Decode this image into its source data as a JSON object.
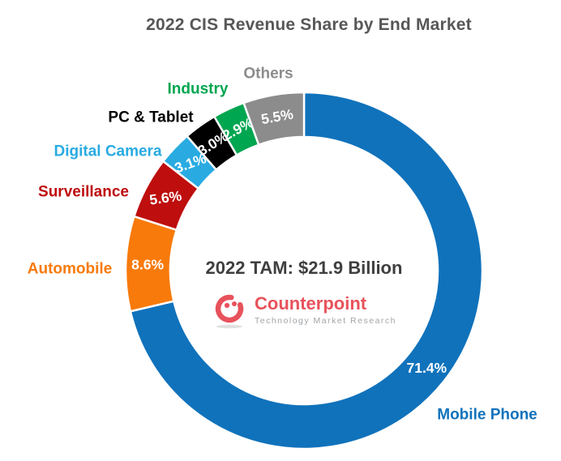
{
  "title": "2022 CIS Revenue Share by End Market",
  "center": {
    "tam_text": "2022 TAM: $21.9 Billion",
    "logo": {
      "name": "Counterpoint",
      "tagline": "Technology Market Research",
      "brand_color": "#e8525b"
    }
  },
  "chart_data": {
    "type": "pie",
    "subtype": "donut",
    "title": "2022 CIS Revenue Share by End Market",
    "annotation": "2022 TAM: $21.9 Billion",
    "unit": "%",
    "start_angle_deg": 0,
    "direction": "clockwise",
    "slices": [
      {
        "label": "Mobile Phone",
        "value": 71.4,
        "color": "#1072bb"
      },
      {
        "label": "Automobile",
        "value": 8.6,
        "color": "#f87a0a"
      },
      {
        "label": "Surveillance",
        "value": 5.6,
        "color": "#be0e0e"
      },
      {
        "label": "Digital Camera",
        "value": 3.1,
        "color": "#29abe2"
      },
      {
        "label": "PC & Tablet",
        "value": 3.0,
        "color": "#000000"
      },
      {
        "label": "Industry",
        "value": 2.9,
        "color": "#00a650"
      },
      {
        "label": "Others",
        "value": 5.5,
        "color": "#8c8c8c"
      }
    ]
  }
}
